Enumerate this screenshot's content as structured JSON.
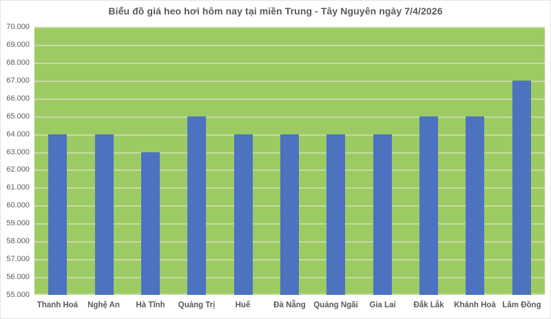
{
  "title": "Biểu đồ giá heo hơi hôm nay tại miền Trung - Tây Nguyên ngày 7/4/2026",
  "colors": {
    "bar": "#4C72C0",
    "plot_background": "#9CCB63",
    "gridline": "#C6DBA2",
    "text": "#595959",
    "frame_border": "#E3E3E3",
    "page_background": "#FFFFFF"
  },
  "chart_data": {
    "type": "bar",
    "title": "Biểu đồ giá heo hơi hôm nay tại miền Trung - Tây Nguyên ngày 7/4/2026",
    "categories": [
      "Thanh Hoá",
      "Nghệ An",
      "Hà Tĩnh",
      "Quảng Trị",
      "Huế",
      "Đà Nẵng",
      "Quảng Ngãi",
      "Gia Lai",
      "Đắk Lắk",
      "Khánh Hoà",
      "Lâm Đồng"
    ],
    "values": [
      64000,
      64000,
      63000,
      65000,
      64000,
      64000,
      64000,
      64000,
      65000,
      65000,
      67000
    ],
    "xlabel": "",
    "ylabel": "",
    "ylim": [
      55000,
      70000
    ],
    "ytick_step": 1000,
    "ytick_labels": [
      "55.000",
      "56.000",
      "57.000",
      "58.000",
      "59.000",
      "60.000",
      "61.000",
      "62.000",
      "63.000",
      "64.000",
      "65.000",
      "66.000",
      "67.000",
      "68.000",
      "69.000",
      "70.000"
    ],
    "grid": true,
    "legend": false
  }
}
